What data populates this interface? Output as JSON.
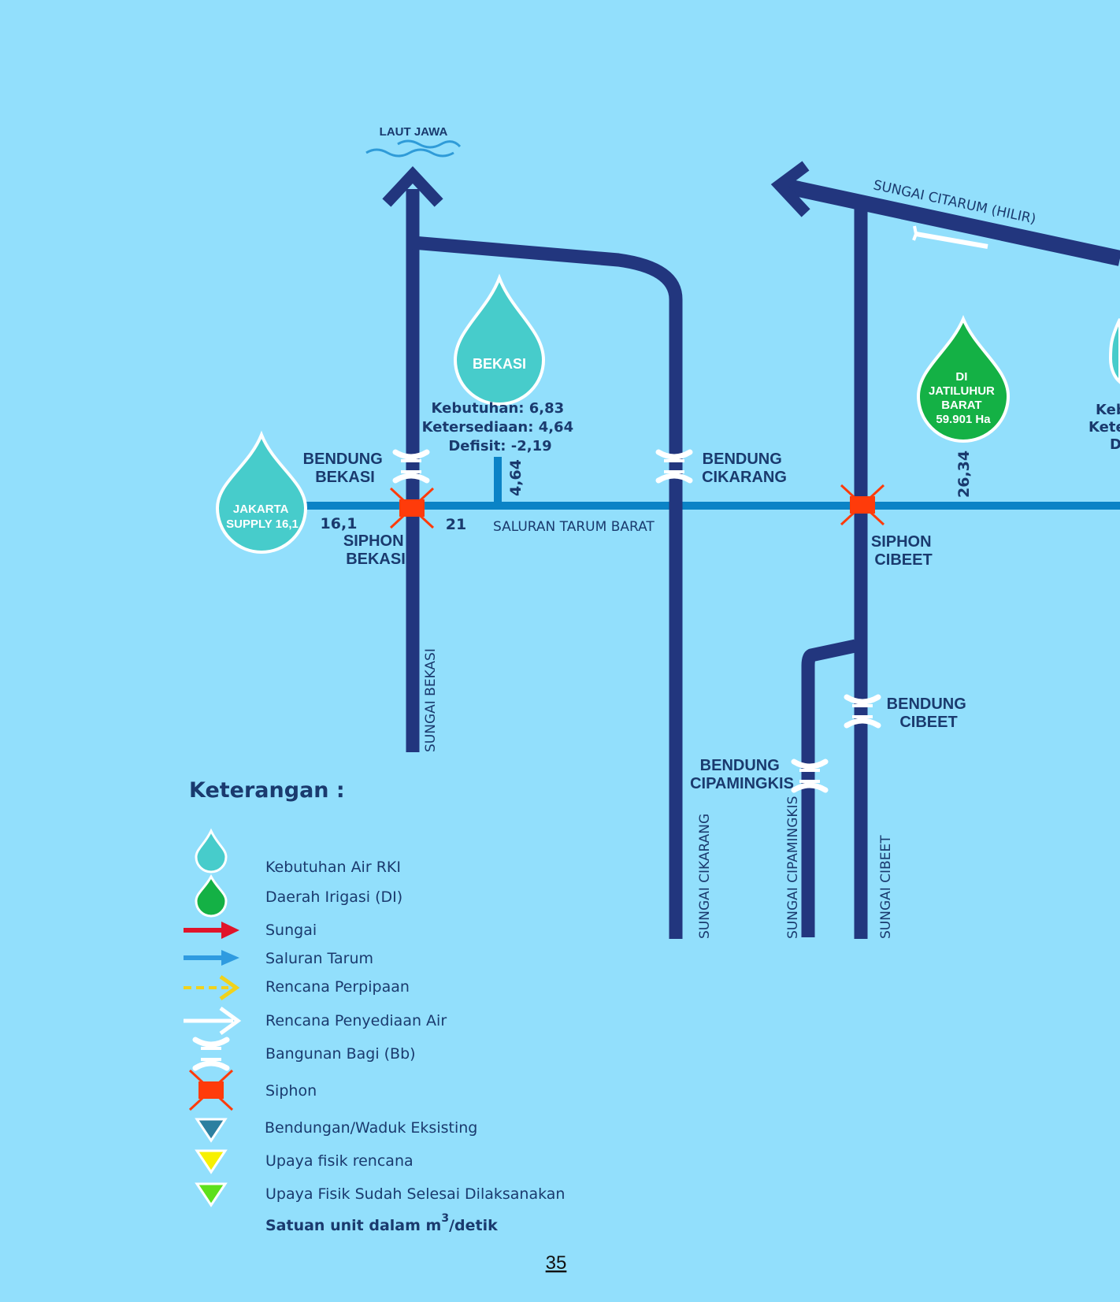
{
  "colors": {
    "background": "#92dffc",
    "river": "#22367e",
    "canal": "#0b83c6",
    "drop_rki": "#47cccb",
    "drop_di": "#14b145",
    "siphon": "#ff3b0a",
    "text": "#1a3a6e"
  },
  "sea": {
    "label": "LAUT JAWA"
  },
  "rivers": {
    "citarum": "SUNGAI CITARUM (HILIR)",
    "bekasi": "SUNGAI BEKASI",
    "cikarang": "SUNGAI CIKARANG",
    "cipamingkis": "SUNGAI CIPAMINGKIS",
    "cibeet": "SUNGAI CIBEET"
  },
  "canal": {
    "label": "SALURAN TARUM BARAT"
  },
  "structures": {
    "bendung_bekasi": [
      "BENDUNG",
      "BEKASI"
    ],
    "bendung_cikarang": [
      "BENDUNG",
      "CIKARANG"
    ],
    "bendung_cibeet": [
      "BENDUNG",
      "CIBEET"
    ],
    "bendung_cipamingkis": [
      "BENDUNG",
      "CIPAMINGKIS"
    ],
    "siphon_bekasi": [
      "SIPHON",
      "BEKASI"
    ],
    "siphon_cibeet": [
      "SIPHON",
      "CIBEET"
    ]
  },
  "drops": {
    "jakarta": [
      "JAKARTA",
      "SUPPLY 16,1"
    ],
    "bekasi": [
      "BEKASI"
    ],
    "jatiluhur": [
      "DI",
      "JATILUHUR",
      "BARAT",
      "59.901 Ha"
    ]
  },
  "bekasi_info": {
    "kebutuhan": "Kebutuhan: 6,83",
    "ketersediaan": "Ketersediaan: 4,64",
    "defisit": "Defisit: -2,19"
  },
  "partial_info": [
    "Keb",
    "Kete",
    "D"
  ],
  "flows": {
    "jakarta": "16,1",
    "after_siphon": "21",
    "bekasi_offtake": "4,64",
    "jatiluhur": "26,34"
  },
  "legend": {
    "title": "Keterangan :",
    "items": {
      "rki": "Kebutuhan Air  RKI",
      "di": "Daerah Irigasi (DI)",
      "sungai": "Sungai",
      "saluran": "Saluran Tarum",
      "perpipaan": "Rencana Perpipaan",
      "penyediaan": "Rencana Penyediaan Air",
      "bagi": "Bangunan Bagi (Bb)",
      "siphon": "Siphon",
      "bendungan": "Bendungan/Waduk  Eksisting",
      "upaya_rencana": "Upaya fisik rencana",
      "upaya_selesai": "Upaya Fisik Sudah Selesai Dilaksanakan"
    },
    "unit_prefix": "Satuan unit dalam m",
    "unit_sup": "3",
    "unit_suffix": "/detik"
  },
  "page_number": "35"
}
